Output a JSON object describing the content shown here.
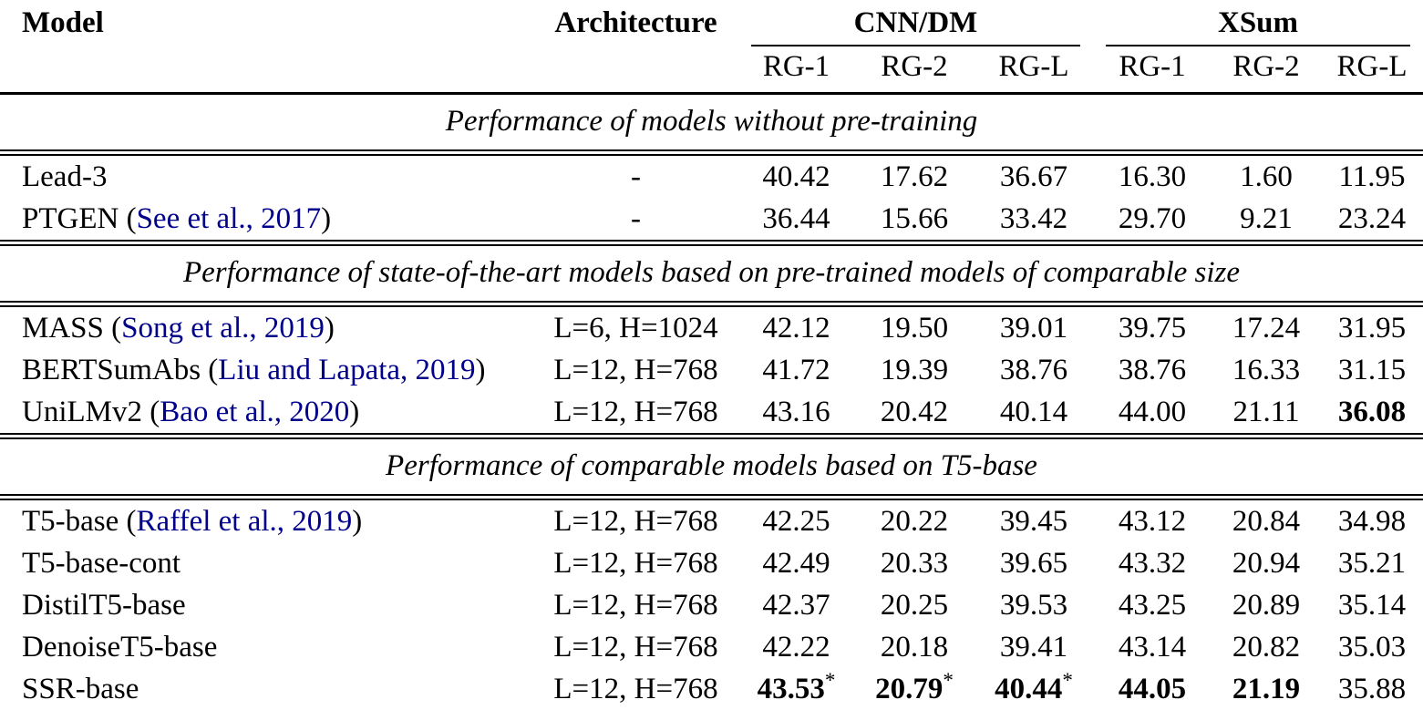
{
  "table": {
    "header": {
      "model": "Model",
      "architecture": "Architecture",
      "groups": [
        {
          "label": "CNN/DM",
          "cols": [
            "RG-1",
            "RG-2",
            "RG-L"
          ]
        },
        {
          "label": "XSum",
          "cols": [
            "RG-1",
            "RG-2",
            "RG-L"
          ]
        }
      ]
    },
    "citation_color": "#00008b",
    "sections": [
      {
        "title": "Performance of models without pre-training",
        "rows": [
          {
            "model": [
              {
                "text": "Lead-3",
                "link": false
              }
            ],
            "architecture": "-",
            "values": [
              {
                "v": "40.42"
              },
              {
                "v": "17.62"
              },
              {
                "v": "36.67"
              },
              {
                "v": "16.30"
              },
              {
                "v": "1.60"
              },
              {
                "v": "11.95"
              }
            ]
          },
          {
            "model": [
              {
                "text": "PTGEN (",
                "link": false
              },
              {
                "text": "See et al., 2017",
                "link": true
              },
              {
                "text": ")",
                "link": false
              }
            ],
            "architecture": "-",
            "values": [
              {
                "v": "36.44"
              },
              {
                "v": "15.66"
              },
              {
                "v": "33.42"
              },
              {
                "v": "29.70"
              },
              {
                "v": "9.21"
              },
              {
                "v": "23.24"
              }
            ]
          }
        ]
      },
      {
        "title": "Performance of state-of-the-art models based on pre-trained models of comparable size",
        "rows": [
          {
            "model": [
              {
                "text": "MASS (",
                "link": false
              },
              {
                "text": "Song et al., 2019",
                "link": true
              },
              {
                "text": ")",
                "link": false
              }
            ],
            "architecture": "L=6, H=1024",
            "values": [
              {
                "v": "42.12"
              },
              {
                "v": "19.50"
              },
              {
                "v": "39.01"
              },
              {
                "v": "39.75"
              },
              {
                "v": "17.24"
              },
              {
                "v": "31.95"
              }
            ]
          },
          {
            "model": [
              {
                "text": "BERTSumAbs (",
                "link": false
              },
              {
                "text": "Liu and Lapata, 2019",
                "link": true
              },
              {
                "text": ")",
                "link": false
              }
            ],
            "architecture": "L=12, H=768",
            "values": [
              {
                "v": "41.72"
              },
              {
                "v": "19.39"
              },
              {
                "v": "38.76"
              },
              {
                "v": "38.76"
              },
              {
                "v": "16.33"
              },
              {
                "v": "31.15"
              }
            ]
          },
          {
            "model": [
              {
                "text": "UniLMv2 (",
                "link": false
              },
              {
                "text": "Bao et al., 2020",
                "link": true
              },
              {
                "text": ")",
                "link": false
              }
            ],
            "architecture": "L=12, H=768",
            "values": [
              {
                "v": "43.16"
              },
              {
                "v": "20.42"
              },
              {
                "v": "40.14"
              },
              {
                "v": "44.00"
              },
              {
                "v": "21.11"
              },
              {
                "v": "36.08",
                "bold": true
              }
            ]
          }
        ]
      },
      {
        "title": "Performance of comparable models based on T5-base",
        "rows": [
          {
            "model": [
              {
                "text": "T5-base (",
                "link": false
              },
              {
                "text": "Raffel et al., 2019",
                "link": true
              },
              {
                "text": ")",
                "link": false
              }
            ],
            "architecture": "L=12, H=768",
            "values": [
              {
                "v": "42.25"
              },
              {
                "v": "20.22"
              },
              {
                "v": "39.45"
              },
              {
                "v": "43.12"
              },
              {
                "v": "20.84"
              },
              {
                "v": "34.98"
              }
            ]
          },
          {
            "model": [
              {
                "text": "T5-base-cont",
                "link": false
              }
            ],
            "architecture": "L=12, H=768",
            "values": [
              {
                "v": "42.49"
              },
              {
                "v": "20.33"
              },
              {
                "v": "39.65"
              },
              {
                "v": "43.32"
              },
              {
                "v": "20.94"
              },
              {
                "v": "35.21"
              }
            ]
          },
          {
            "model": [
              {
                "text": "DistilT5-base",
                "link": false
              }
            ],
            "architecture": "L=12, H=768",
            "values": [
              {
                "v": "42.37"
              },
              {
                "v": "20.25"
              },
              {
                "v": "39.53"
              },
              {
                "v": "43.25"
              },
              {
                "v": "20.89"
              },
              {
                "v": "35.14"
              }
            ]
          },
          {
            "model": [
              {
                "text": "DenoiseT5-base",
                "link": false
              }
            ],
            "architecture": "L=12, H=768",
            "values": [
              {
                "v": "42.22"
              },
              {
                "v": "20.18"
              },
              {
                "v": "39.41"
              },
              {
                "v": "43.14"
              },
              {
                "v": "20.82"
              },
              {
                "v": "35.03"
              }
            ]
          },
          {
            "model": [
              {
                "text": "SSR-base",
                "link": false
              }
            ],
            "architecture": "L=12, H=768",
            "values": [
              {
                "v": "43.53",
                "bold": true,
                "star": true
              },
              {
                "v": "20.79",
                "bold": true,
                "star": true
              },
              {
                "v": "40.44",
                "bold": true,
                "star": true
              },
              {
                "v": "44.05",
                "bold": true
              },
              {
                "v": "21.19",
                "bold": true
              },
              {
                "v": "35.88"
              }
            ]
          }
        ]
      }
    ]
  }
}
